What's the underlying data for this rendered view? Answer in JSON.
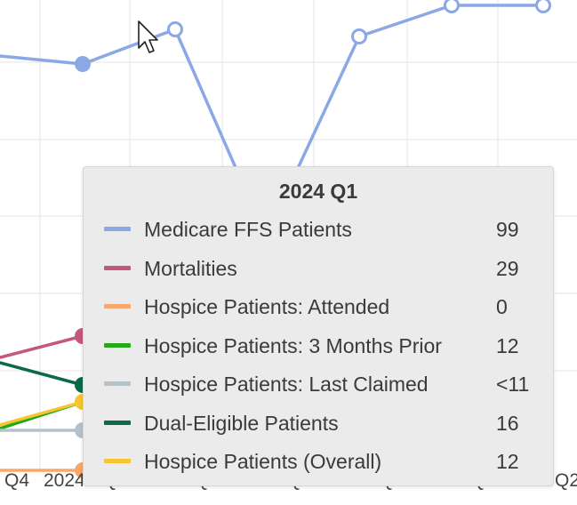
{
  "chart_data": {
    "type": "line",
    "x_tick_labels": [
      "Q4",
      "2024",
      "Q",
      "Q",
      "Q",
      "Q",
      "Q",
      "Q2"
    ],
    "series": [
      {
        "name": "Medicare FFS Patients",
        "color": "#8aa8e6"
      },
      {
        "name": "Mortalities",
        "color": "#c2587c"
      },
      {
        "name": "Hospice Patients: Attended",
        "color": "#f7a86a"
      },
      {
        "name": "Hospice Patients: 3 Months Prior",
        "color": "#25a818"
      },
      {
        "name": "Hospice Patients: Last Claimed",
        "color": "#b4c2cc"
      },
      {
        "name": "Dual-Eligible Patients",
        "color": "#0b6a45"
      },
      {
        "name": "Hospice Patients (Overall)",
        "color": "#f7c52e"
      }
    ]
  },
  "tooltip": {
    "title": "2024 Q1",
    "rows": [
      {
        "name": "Medicare FFS Patients",
        "value": "99",
        "color": "#8aa8e6"
      },
      {
        "name": "Mortalities",
        "value": "29",
        "color": "#c2587c"
      },
      {
        "name": "Hospice Patients: Attended",
        "value": "0",
        "color": "#f7a86a"
      },
      {
        "name": "Hospice Patients: 3 Months Prior",
        "value": "12",
        "color": "#25a818"
      },
      {
        "name": "Hospice Patients: Last Claimed",
        "value": "<11",
        "color": "#b4c2cc"
      },
      {
        "name": "Dual-Eligible Patients",
        "value": "16",
        "color": "#0b6a45"
      },
      {
        "name": "Hospice Patients (Overall)",
        "value": "12",
        "color": "#f7c52e"
      }
    ]
  }
}
